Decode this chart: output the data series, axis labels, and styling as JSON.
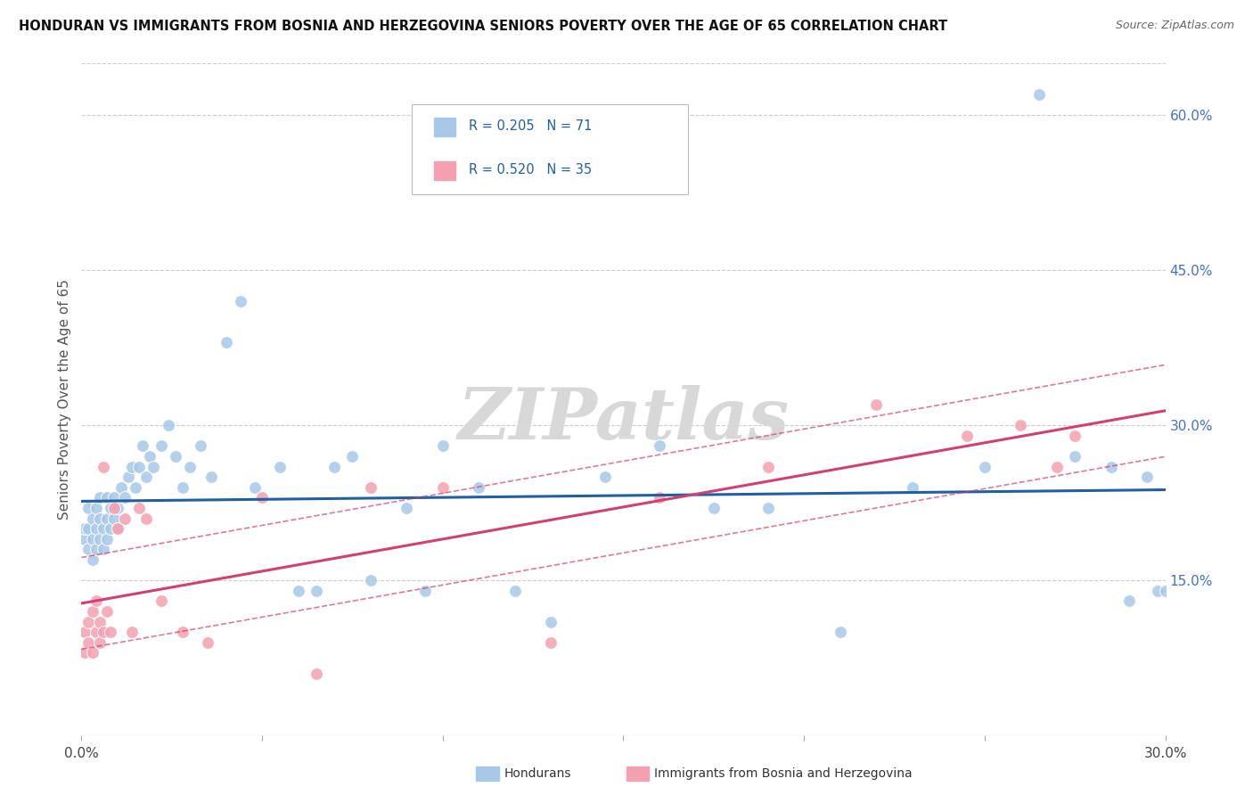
{
  "title": "HONDURAN VS IMMIGRANTS FROM BOSNIA AND HERZEGOVINA SENIORS POVERTY OVER THE AGE OF 65 CORRELATION CHART",
  "source": "Source: ZipAtlas.com",
  "ylabel": "Seniors Poverty Over the Age of 65",
  "xlim": [
    0.0,
    0.3
  ],
  "ylim": [
    0.0,
    0.65
  ],
  "xticks": [
    0.0,
    0.05,
    0.1,
    0.15,
    0.2,
    0.25,
    0.3
  ],
  "xticklabels": [
    "0.0%",
    "",
    "",
    "",
    "",
    "",
    "30.0%"
  ],
  "yticks_right": [
    0.15,
    0.3,
    0.45,
    0.6
  ],
  "ytick_labels_right": [
    "15.0%",
    "30.0%",
    "45.0%",
    "60.0%"
  ],
  "blue_R": 0.205,
  "blue_N": 71,
  "pink_R": 0.52,
  "pink_N": 35,
  "blue_color": "#a8c8e8",
  "pink_color": "#f4a0b0",
  "blue_line_color": "#2060a0",
  "pink_line_color": "#d04070",
  "watermark_text": "ZIPatlas",
  "legend_label_blue": "Hondurans",
  "legend_label_pink": "Immigrants from Bosnia and Herzegovina",
  "blue_points_x": [
    0.001,
    0.001,
    0.002,
    0.002,
    0.002,
    0.003,
    0.003,
    0.003,
    0.004,
    0.004,
    0.004,
    0.005,
    0.005,
    0.005,
    0.006,
    0.006,
    0.007,
    0.007,
    0.007,
    0.008,
    0.008,
    0.009,
    0.009,
    0.01,
    0.01,
    0.011,
    0.012,
    0.013,
    0.014,
    0.015,
    0.016,
    0.017,
    0.018,
    0.019,
    0.02,
    0.022,
    0.024,
    0.026,
    0.028,
    0.03,
    0.033,
    0.036,
    0.04,
    0.044,
    0.048,
    0.055,
    0.06,
    0.065,
    0.07,
    0.075,
    0.08,
    0.09,
    0.095,
    0.1,
    0.11,
    0.12,
    0.13,
    0.145,
    0.16,
    0.175,
    0.19,
    0.21,
    0.23,
    0.25,
    0.265,
    0.275,
    0.285,
    0.29,
    0.295,
    0.298,
    0.3
  ],
  "blue_points_y": [
    0.19,
    0.2,
    0.18,
    0.2,
    0.22,
    0.17,
    0.19,
    0.21,
    0.18,
    0.2,
    0.22,
    0.19,
    0.21,
    0.23,
    0.18,
    0.2,
    0.19,
    0.21,
    0.23,
    0.2,
    0.22,
    0.21,
    0.23,
    0.2,
    0.22,
    0.24,
    0.23,
    0.25,
    0.26,
    0.24,
    0.26,
    0.28,
    0.25,
    0.27,
    0.26,
    0.28,
    0.3,
    0.27,
    0.24,
    0.26,
    0.28,
    0.25,
    0.38,
    0.42,
    0.24,
    0.26,
    0.14,
    0.14,
    0.26,
    0.27,
    0.15,
    0.22,
    0.14,
    0.28,
    0.24,
    0.14,
    0.11,
    0.25,
    0.28,
    0.22,
    0.22,
    0.1,
    0.24,
    0.26,
    0.62,
    0.27,
    0.26,
    0.13,
    0.25,
    0.14,
    0.14
  ],
  "pink_points_x": [
    0.001,
    0.001,
    0.002,
    0.002,
    0.003,
    0.003,
    0.004,
    0.004,
    0.005,
    0.005,
    0.006,
    0.006,
    0.007,
    0.008,
    0.009,
    0.01,
    0.012,
    0.014,
    0.016,
    0.018,
    0.022,
    0.028,
    0.035,
    0.05,
    0.065,
    0.08,
    0.1,
    0.13,
    0.16,
    0.19,
    0.22,
    0.245,
    0.26,
    0.27,
    0.275
  ],
  "pink_points_y": [
    0.08,
    0.1,
    0.09,
    0.11,
    0.08,
    0.12,
    0.1,
    0.13,
    0.09,
    0.11,
    0.1,
    0.26,
    0.12,
    0.1,
    0.22,
    0.2,
    0.21,
    0.1,
    0.22,
    0.21,
    0.13,
    0.1,
    0.09,
    0.23,
    0.06,
    0.24,
    0.24,
    0.09,
    0.23,
    0.26,
    0.32,
    0.29,
    0.3,
    0.26,
    0.29
  ]
}
